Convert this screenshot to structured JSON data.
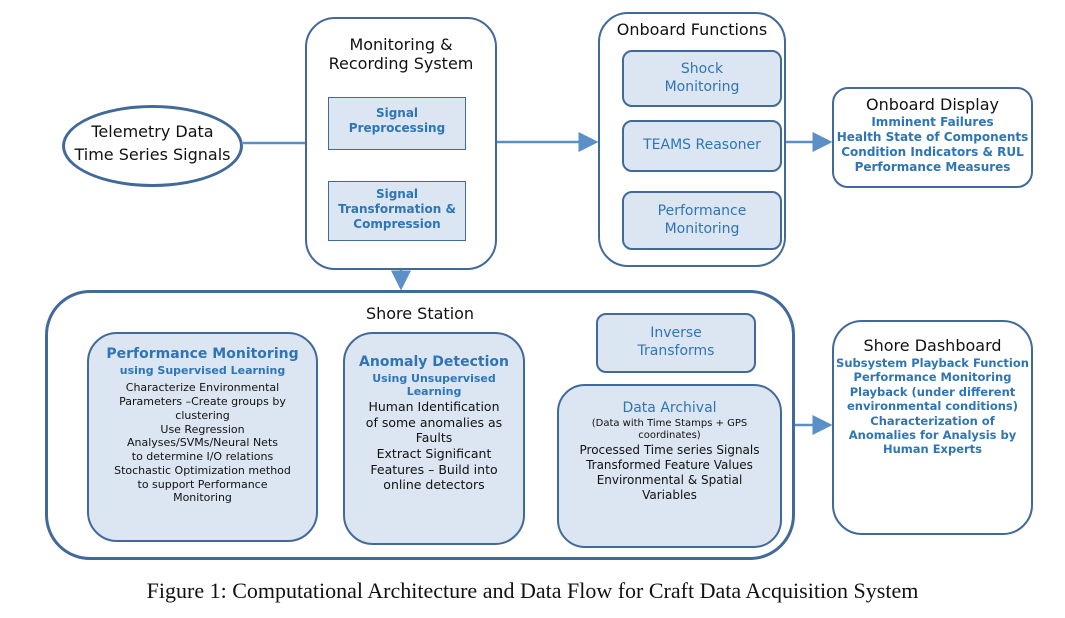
{
  "telemetry": {
    "line1": "Telemetry Data",
    "line2": "Time Series Signals"
  },
  "monitoring": {
    "title1": "Monitoring &",
    "title2": "Recording System",
    "preprocessing": [
      "Signal",
      "Preprocessing"
    ],
    "transformation": [
      "Signal",
      "Transformation &",
      "Compression"
    ]
  },
  "onboard_functions": {
    "title": "Onboard Functions",
    "shock": [
      "Shock",
      "Monitoring"
    ],
    "teams": "TEAMS Reasoner",
    "performance": [
      "Performance",
      "Monitoring"
    ]
  },
  "onboard_display": {
    "title": "Onboard Display",
    "items": [
      "Imminent Failures",
      "Health State of Components",
      "Condition Indicators & RUL",
      "Performance Measures"
    ]
  },
  "shore_station": {
    "title": "Shore Station",
    "performance": {
      "title": "Performance Monitoring",
      "subtitle": "using Supervised Learning",
      "lines": [
        "Characterize Environmental",
        "Parameters –Create groups by",
        "clustering",
        "Use Regression",
        "Analyses/SVMs/Neural Nets",
        "to determine I/O relations",
        "Stochastic Optimization method",
        "to support Performance",
        "Monitoring"
      ]
    },
    "anomaly": {
      "title": "Anomaly Detection",
      "subtitle": [
        "Using Unsupervised",
        "Learning"
      ],
      "lines": [
        "Human Identification",
        "of some anomalies as",
        "Faults",
        "Extract Significant",
        "Features – Build into",
        "online detectors"
      ]
    },
    "inverse": [
      "Inverse",
      "Transforms"
    ],
    "archival": {
      "title": "Data Archival",
      "subtitle": [
        "(Data with Time Stamps + GPS",
        "coordinates)"
      ],
      "lines": [
        "Processed  Time series Signals",
        "Transformed Feature Values",
        "Environmental & Spatial",
        "Variables"
      ]
    }
  },
  "shore_dashboard": {
    "title": "Shore Dashboard",
    "items": [
      "Subsystem Playback Function",
      "Performance Monitoring",
      "Playback (under different",
      "environmental conditions)",
      "Characterization of",
      "Anomalies  for Analysis by",
      "Human Experts"
    ]
  },
  "caption": "Figure 1: Computational Architecture and Data Flow for Craft Data Acquisition System",
  "colors": {
    "border": "#41699a",
    "fill": "#dce6f2",
    "accent_text": "#2e75b6",
    "arrow": "#5b8fc7"
  }
}
